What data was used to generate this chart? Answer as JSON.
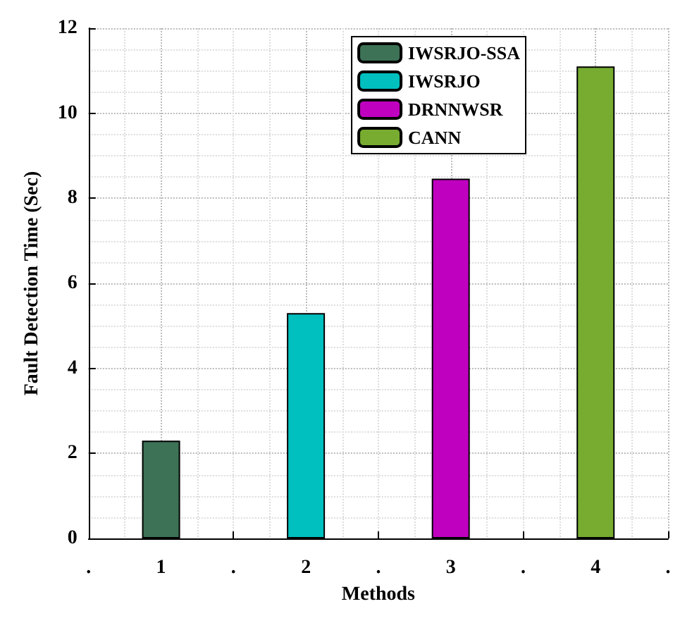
{
  "chart_data": {
    "type": "bar",
    "xlabel": "Methods",
    "ylabel": "Fault Detection Time (Sec)",
    "x": [
      1,
      2,
      3,
      4
    ],
    "series": [
      {
        "name": "IWSRJO-SSA",
        "color": "#3d7256",
        "values": [
          2.3,
          null,
          null,
          null
        ]
      },
      {
        "name": "IWSRJO",
        "color": "#00bfbf",
        "values": [
          null,
          5.3,
          null,
          null
        ]
      },
      {
        "name": "DRNNWSR",
        "color": "#bf00bf",
        "values": [
          null,
          null,
          8.46,
          null
        ]
      },
      {
        "name": "CANN",
        "color": "#77ac30",
        "values": [
          null,
          null,
          null,
          11.1
        ]
      }
    ],
    "xlim": [
      0.5,
      4.5
    ],
    "xticks": [
      {
        "value": 0.5,
        "label": "."
      },
      1,
      {
        "value": 1.5,
        "label": "."
      },
      2,
      {
        "value": 2.5,
        "label": "."
      },
      3,
      {
        "value": 3.5,
        "label": "."
      },
      4,
      {
        "value": 4.5,
        "label": "."
      }
    ],
    "ylim": [
      0,
      12
    ],
    "yticks": [
      0,
      2,
      4,
      6,
      8,
      10,
      12
    ],
    "grid": true,
    "legend": "top right"
  }
}
